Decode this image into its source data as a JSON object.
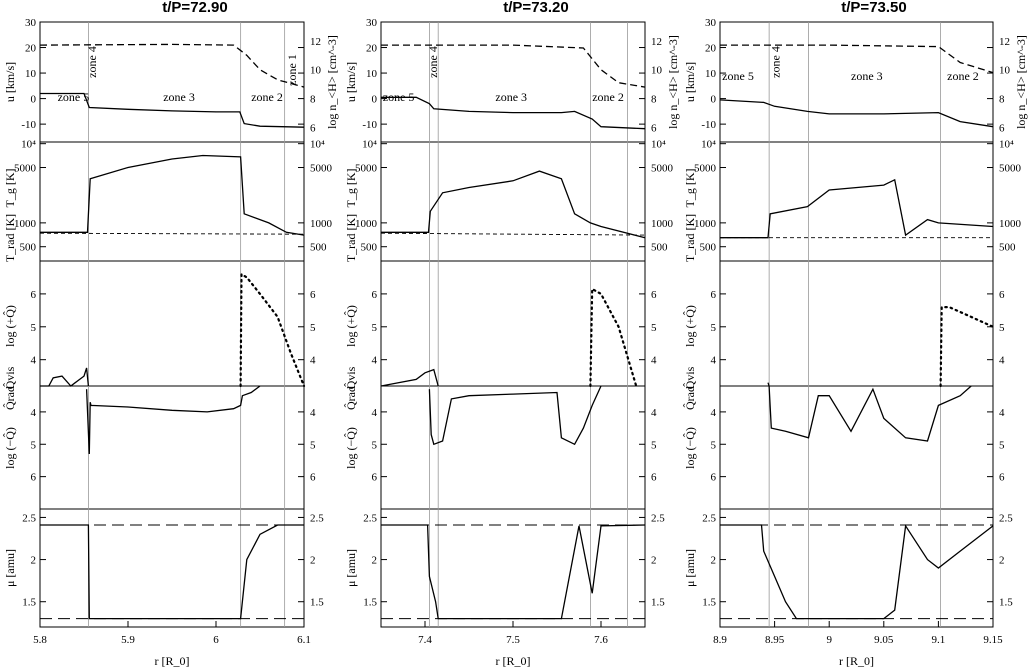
{
  "figure": {
    "panel_titles": [
      "t/P=72.90",
      "t/P=73.20",
      "t/P=73.50"
    ],
    "left_labels": [
      "u [km/s]",
      "T_g [K]",
      "T_rad [K]",
      "log (+Q̂)",
      "Q̂vis",
      "Q̂rad",
      "log (−Q̂)",
      "μ [amu]"
    ],
    "right_labels": [
      "log n_<H> [cm^-3]"
    ],
    "xlabel": "r [R_0]"
  },
  "chart_data": [
    {
      "type": "line",
      "title": "t/P=72.90",
      "xlabel": "r [R_0]",
      "xlim": [
        5.8,
        6.1
      ],
      "xticks": [
        "5.8",
        "5.9",
        "6",
        "6.1"
      ],
      "zone_boundaries_x": [
        5.855,
        6.028,
        6.078
      ],
      "zones": [
        {
          "name": "zone 5",
          "x": 5.82
        },
        {
          "name": "zone 4",
          "x": 5.858
        },
        {
          "name": "zone 3",
          "x": 5.94
        },
        {
          "name": "zone 2",
          "x": 6.04
        },
        {
          "name": "zone 1",
          "x": 6.085
        }
      ],
      "series": [
        {
          "row": "velocity",
          "style": "solid",
          "x": [
            5.8,
            5.85,
            5.856,
            5.9,
            5.95,
            6.0,
            6.027,
            6.032,
            6.05,
            6.1
          ],
          "y": [
            2,
            2,
            -3.5,
            -4.2,
            -4.8,
            -5.2,
            -5.2,
            -9.8,
            -10.8,
            -11.2
          ]
        },
        {
          "row": "density",
          "style": "dashed",
          "x": [
            5.8,
            5.95,
            6.02,
            6.035,
            6.05,
            6.07,
            6.1
          ],
          "y": [
            11.7,
            11.75,
            11.7,
            11.0,
            10.0,
            9.3,
            8.8
          ]
        },
        {
          "row": "temperature",
          "style": "solid",
          "x": [
            5.8,
            5.854,
            5.857,
            5.9,
            5.95,
            5.985,
            6.028,
            6.032,
            6.06,
            6.08,
            6.1
          ],
          "y": [
            760,
            760,
            3600,
            5000,
            6400,
            7100,
            6800,
            1300,
            1000,
            760,
            700
          ]
        },
        {
          "row": "temperature",
          "style": "dashed",
          "x": [
            5.8,
            6.1
          ],
          "y": [
            740,
            720
          ]
        },
        {
          "row": "heating",
          "style": "solid",
          "x": [
            5.8,
            5.81,
            5.815,
            5.825,
            5.835,
            5.84,
            5.85,
            5.853,
            5.855
          ],
          "y": [
            3.2,
            3.2,
            3.45,
            3.5,
            3.2,
            3.3,
            3.5,
            3.75,
            3.2
          ]
        },
        {
          "row": "heating",
          "style": "dotted",
          "x": [
            6.028,
            6.029,
            6.035,
            6.05,
            6.07,
            6.085,
            6.1
          ],
          "y": [
            3.2,
            6.6,
            6.5,
            6.0,
            5.3,
            4.2,
            3.2
          ]
        },
        {
          "row": "cooling",
          "style": "solid",
          "x": [
            5.853,
            5.856,
            5.857,
            5.858,
            5.9,
            5.95,
            5.99,
            6.02,
            6.028,
            6.03,
            6.04,
            6.05
          ],
          "y": [
            3.3,
            5.3,
            3.7,
            3.8,
            3.85,
            3.95,
            4.0,
            3.9,
            3.8,
            3.5,
            3.4,
            3.2
          ]
        },
        {
          "row": "mu",
          "style": "solid",
          "x": [
            5.8,
            5.855,
            5.856,
            6.028,
            6.035,
            6.05,
            6.07,
            6.1
          ],
          "y": [
            2.41,
            2.41,
            1.3,
            1.3,
            2.0,
            2.3,
            2.41,
            2.41
          ]
        }
      ]
    },
    {
      "type": "line",
      "title": "t/P=73.20",
      "xlabel": "r [R_0]",
      "xlim": [
        7.35,
        7.65
      ],
      "xticks": [
        "7.4",
        "7.5",
        "7.6"
      ],
      "zone_boundaries_x": [
        7.405,
        7.415,
        7.588,
        7.63
      ],
      "zones": [
        {
          "name": "zone 5",
          "x": 7.352
        },
        {
          "name": "zone 4",
          "x": 7.408
        },
        {
          "name": "zone 3",
          "x": 7.48
        },
        {
          "name": "zone 2",
          "x": 7.59
        }
      ],
      "series": [
        {
          "row": "velocity",
          "style": "solid",
          "x": [
            7.35,
            7.39,
            7.405,
            7.41,
            7.45,
            7.5,
            7.555,
            7.57,
            7.59,
            7.6,
            7.65
          ],
          "y": [
            0.5,
            0.5,
            -2.0,
            -4.0,
            -5.0,
            -5.5,
            -5.5,
            -5.0,
            -8.0,
            -11.0,
            -11.8
          ]
        },
        {
          "row": "density",
          "style": "dashed",
          "x": [
            7.35,
            7.5,
            7.58,
            7.6,
            7.62,
            7.65
          ],
          "y": [
            11.7,
            11.7,
            11.5,
            10.0,
            9.1,
            8.8
          ]
        },
        {
          "row": "temperature",
          "style": "solid",
          "x": [
            7.35,
            7.404,
            7.406,
            7.42,
            7.45,
            7.5,
            7.53,
            7.555,
            7.57,
            7.588,
            7.6,
            7.65
          ],
          "y": [
            760,
            760,
            1400,
            2400,
            2800,
            3400,
            4500,
            3600,
            1300,
            1000,
            900,
            650
          ]
        },
        {
          "row": "temperature",
          "style": "dashed",
          "x": [
            7.35,
            7.65
          ],
          "y": [
            740,
            700
          ]
        },
        {
          "row": "heating",
          "style": "solid",
          "x": [
            7.35,
            7.39,
            7.4,
            7.41,
            7.415
          ],
          "y": [
            3.2,
            3.4,
            3.6,
            3.7,
            3.2
          ]
        },
        {
          "row": "heating",
          "style": "dotted",
          "x": [
            7.588,
            7.59,
            7.6,
            7.62,
            7.64
          ],
          "y": [
            3.2,
            6.15,
            6.0,
            5.0,
            3.2
          ]
        },
        {
          "row": "cooling",
          "style": "solid",
          "x": [
            7.405,
            7.407,
            7.41,
            7.42,
            7.43,
            7.45,
            7.5,
            7.55,
            7.555,
            7.57,
            7.58,
            7.59,
            7.6
          ],
          "y": [
            3.3,
            4.7,
            5.0,
            4.9,
            3.6,
            3.5,
            3.45,
            3.4,
            4.8,
            5.0,
            4.5,
            3.8,
            3.2
          ]
        },
        {
          "row": "mu",
          "style": "solid",
          "x": [
            7.35,
            7.403,
            7.405,
            7.412,
            7.415,
            7.555,
            7.575,
            7.59,
            7.6,
            7.65
          ],
          "y": [
            2.41,
            2.41,
            1.8,
            1.5,
            1.3,
            1.3,
            2.4,
            1.6,
            2.4,
            2.41
          ]
        }
      ]
    },
    {
      "type": "line",
      "title": "t/P=73.50",
      "xlabel": "r [R_0]",
      "xlim": [
        8.9,
        9.15
      ],
      "xticks": [
        "8.9",
        "8.95",
        "9",
        "9.05",
        "9.1",
        "9.15"
      ],
      "zone_boundaries_x": [
        8.945,
        8.981,
        9.102
      ],
      "zones": [
        {
          "name": "zone 5",
          "x": 8.902
        },
        {
          "name": "zone 4",
          "x": 8.95
        },
        {
          "name": "zone 3",
          "x": 9.02
        },
        {
          "name": "zone 2",
          "x": 9.108
        }
      ],
      "series": [
        {
          "row": "velocity",
          "style": "solid",
          "x": [
            8.9,
            8.94,
            8.95,
            8.98,
            9.0,
            9.05,
            9.1,
            9.12,
            9.15
          ],
          "y": [
            -0.5,
            -1.5,
            -3.0,
            -5.0,
            -6.0,
            -6.0,
            -5.5,
            -9.0,
            -11.0
          ]
        },
        {
          "row": "density",
          "style": "dashed",
          "x": [
            8.9,
            9.0,
            9.1,
            9.12,
            9.15
          ],
          "y": [
            11.7,
            11.7,
            11.6,
            10.5,
            9.8
          ]
        },
        {
          "row": "temperature",
          "style": "solid",
          "x": [
            8.9,
            8.944,
            8.946,
            8.98,
            9.0,
            9.05,
            9.06,
            9.07,
            9.09,
            9.1,
            9.15
          ],
          "y": [
            650,
            650,
            1300,
            1600,
            2600,
            3000,
            3500,
            700,
            1100,
            1000,
            900
          ]
        },
        {
          "row": "temperature",
          "style": "dashed",
          "x": [
            8.9,
            9.15
          ],
          "y": [
            650,
            650
          ]
        },
        {
          "row": "heating",
          "style": "solid",
          "x": [
            8.944,
            8.945
          ],
          "y": [
            3.3,
            3.2
          ]
        },
        {
          "row": "heating",
          "style": "dotted",
          "x": [
            9.102,
            9.103,
            9.11,
            9.13,
            9.15
          ],
          "y": [
            3.2,
            5.6,
            5.6,
            5.3,
            5.0
          ]
        },
        {
          "row": "cooling",
          "style": "solid",
          "x": [
            8.945,
            8.947,
            8.96,
            8.981,
            8.99,
            9.0,
            9.02,
            9.04,
            9.05,
            9.07,
            9.09,
            9.1,
            9.12,
            9.13
          ],
          "y": [
            3.2,
            4.5,
            4.6,
            4.8,
            3.5,
            3.5,
            4.6,
            3.3,
            4.2,
            4.8,
            4.9,
            3.8,
            3.5,
            3.2
          ]
        },
        {
          "row": "mu",
          "style": "solid",
          "x": [
            8.9,
            8.938,
            8.94,
            8.95,
            8.96,
            8.97,
            8.98,
            9.05,
            9.06,
            9.07,
            9.09,
            9.1,
            9.12,
            9.15
          ],
          "y": [
            2.41,
            2.41,
            2.1,
            1.8,
            1.5,
            1.3,
            1.3,
            1.3,
            1.4,
            2.4,
            2.0,
            1.9,
            2.1,
            2.4
          ]
        }
      ]
    }
  ]
}
